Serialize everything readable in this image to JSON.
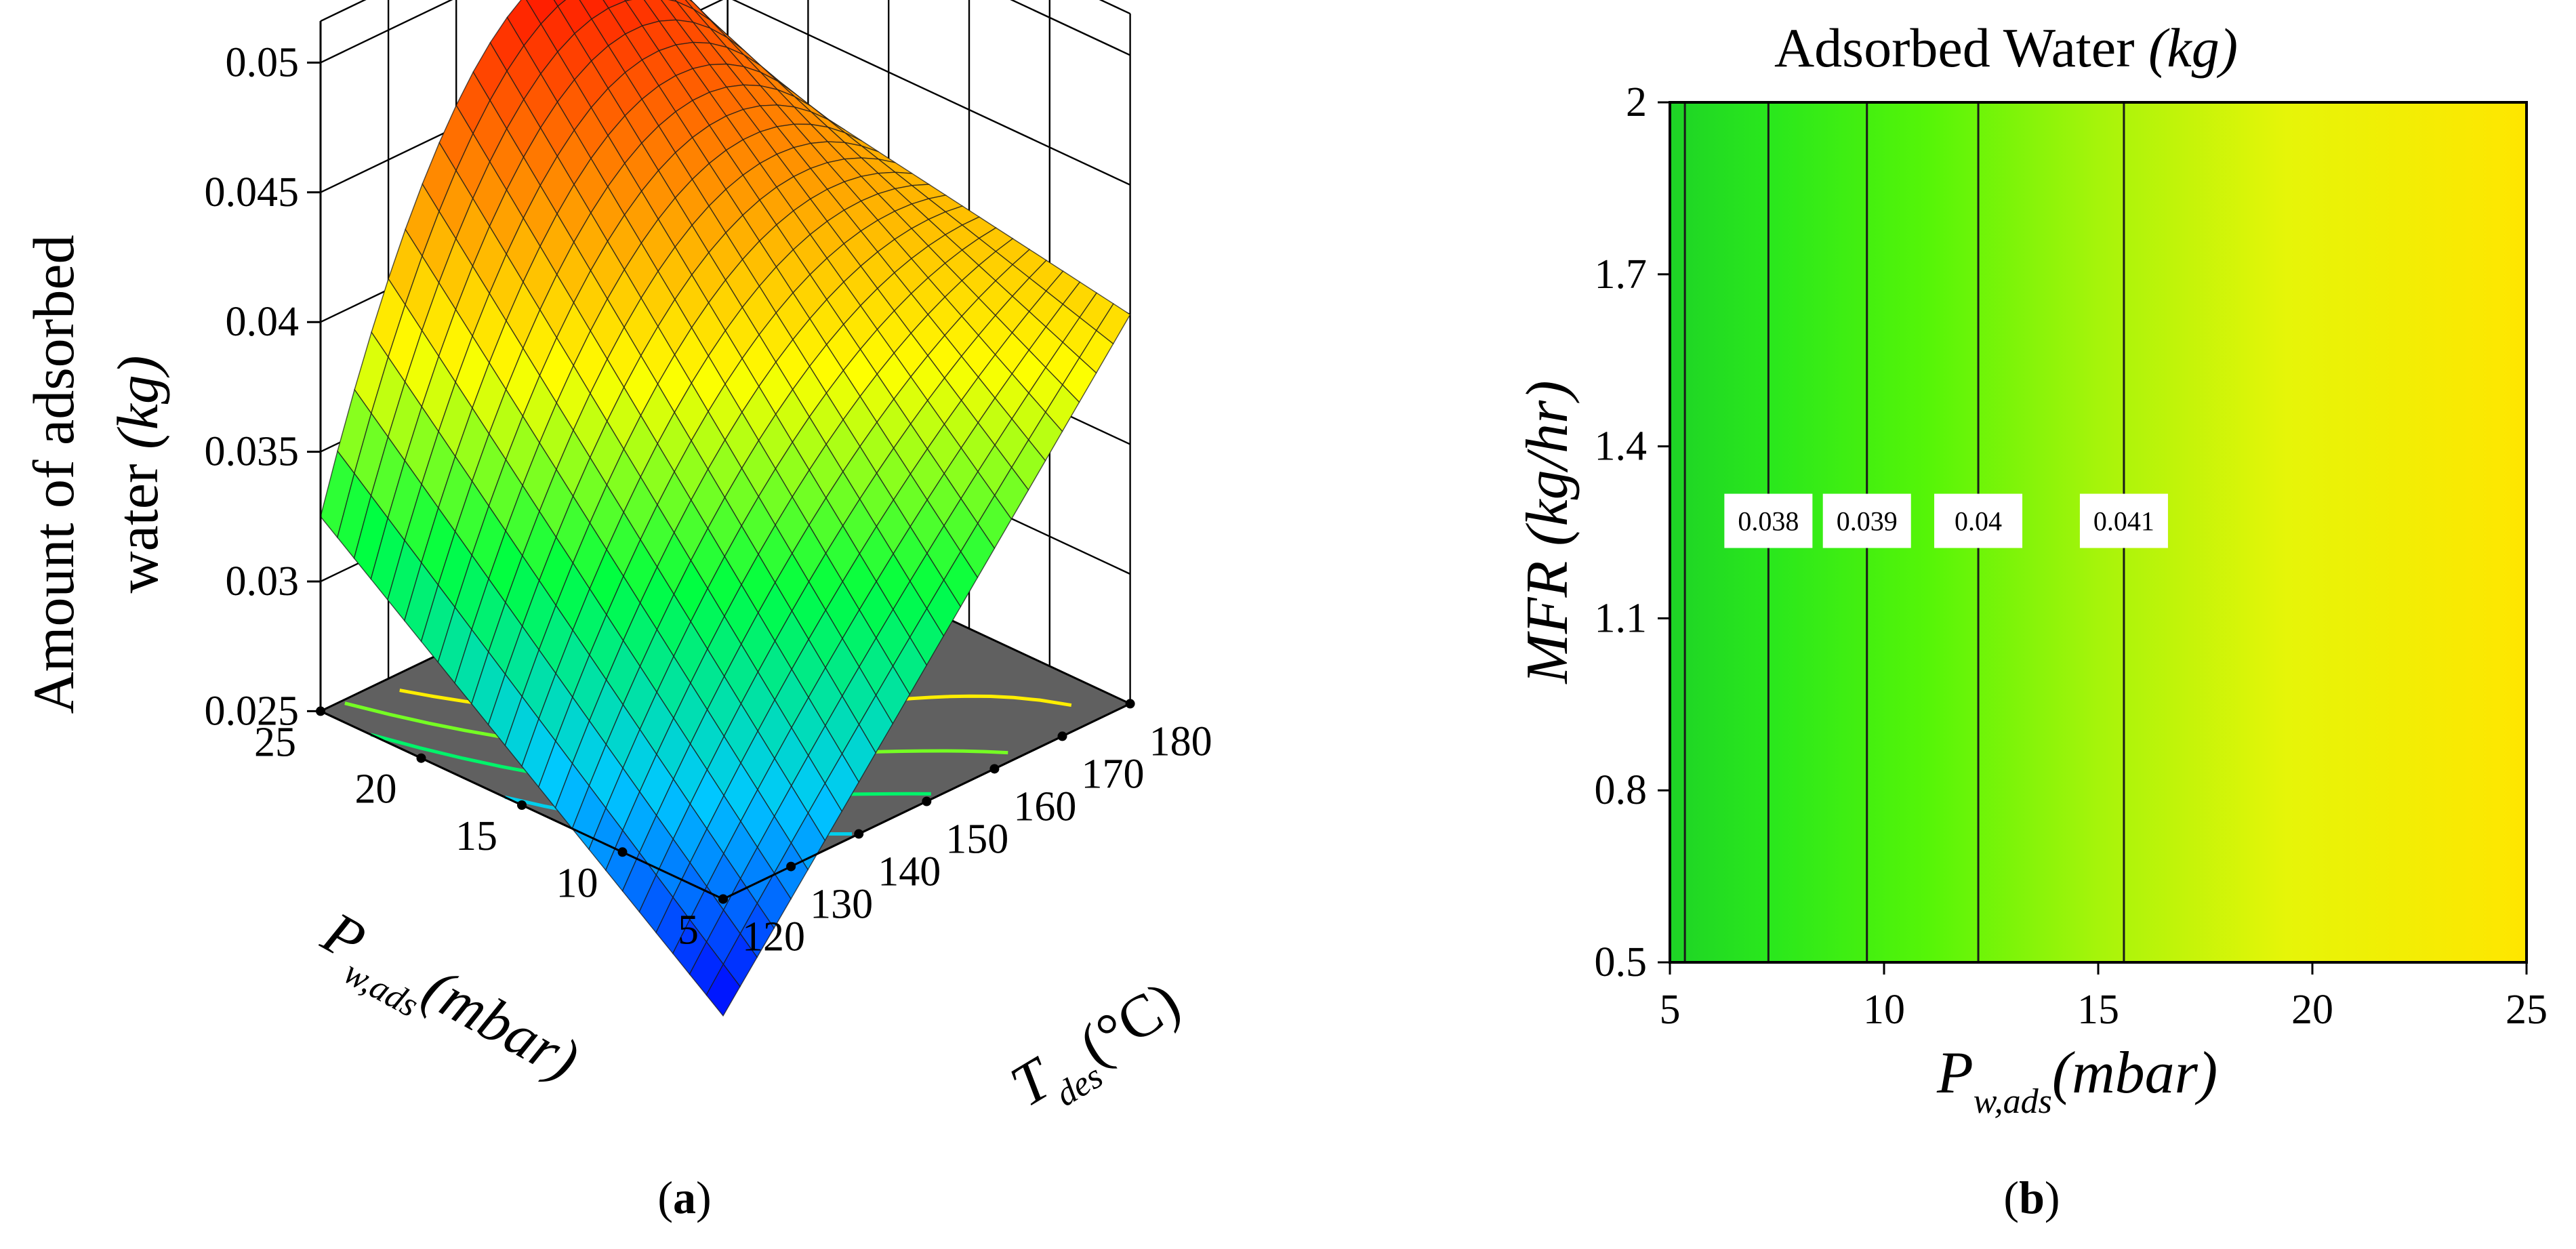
{
  "colors": {
    "background": "#ffffff",
    "axis": "#000000",
    "grid": "#000000",
    "floor": "#606060",
    "colormap": [
      "#0000ff",
      "#00c8ff",
      "#00ff40",
      "#ffff00",
      "#ff8000",
      "#ff0000"
    ]
  },
  "panel_a": {
    "caption_open": "(",
    "caption_letter": "a",
    "caption_close": ")",
    "zlabel_line1": "Amount of adsorbed",
    "zlabel_line2_plain": "water ",
    "zlabel_line2_italic": "(kg)",
    "xlabel_main": "P",
    "xlabel_sub": "w,ads",
    "xlabel_unit": "(mbar)",
    "ylabel_main": "T",
    "ylabel_sub": "des",
    "ylabel_unit": "(°C)",
    "z_ticks": [
      "0.025",
      "0.03",
      "0.035",
      "0.04",
      "0.045",
      "0.05"
    ],
    "p_ticks": [
      "5",
      "10",
      "15",
      "20",
      "25"
    ],
    "t_ticks": [
      "120",
      "130",
      "140",
      "150",
      "160",
      "170",
      "180"
    ]
  },
  "panel_b": {
    "caption_open": "(",
    "caption_letter": "b",
    "caption_close": ")",
    "title_plain": "Adsorbed Water ",
    "title_italic": "(kg)",
    "xlabel_main": "P",
    "xlabel_sub": "w,ads",
    "xlabel_unit": "(mbar)",
    "ylabel": "MFR (kg/hr)",
    "x_ticks": [
      "5",
      "10",
      "15",
      "20",
      "25"
    ],
    "y_ticks": [
      "0.5",
      "0.8",
      "1.1",
      "1.4",
      "1.7",
      "2"
    ]
  },
  "chart_data": [
    {
      "type": "surface",
      "title": "",
      "xlabel": "P_w,ads (mbar)",
      "ylabel": "T_des (°C)",
      "zlabel": "Amount of adsorbed water (kg)",
      "x_range": [
        5,
        25
      ],
      "y_range": [
        120,
        180
      ],
      "z_range": [
        0.025,
        0.05
      ],
      "corner_values": [
        {
          "p": 5,
          "t": 120,
          "z": 0.0205
        },
        {
          "p": 25,
          "t": 120,
          "z": 0.0325
        },
        {
          "p": 5,
          "t": 180,
          "z": 0.04
        },
        {
          "p": 25,
          "t": 180,
          "z": 0.0428
        }
      ],
      "peak": {
        "p": 25,
        "t": 157,
        "z": 0.05
      },
      "floor_contours": [
        0.023,
        0.027,
        0.031,
        0.035,
        0.039
      ]
    },
    {
      "type": "contour",
      "title": "Adsorbed Water (kg)",
      "xlabel": "P_w,ads (mbar)",
      "ylabel": "MFR (kg/hr)",
      "xlim": [
        5,
        25
      ],
      "ylim": [
        0.5,
        2
      ],
      "fill_range": [
        0.037,
        0.043
      ],
      "contour_lines": [
        {
          "x": 5.35,
          "level": null,
          "label": ""
        },
        {
          "x": 7.3,
          "level": 0.038,
          "label": "0.038"
        },
        {
          "x": 9.6,
          "level": 0.039,
          "label": "0.039"
        },
        {
          "x": 12.2,
          "level": 0.04,
          "label": "0.04"
        },
        {
          "x": 15.6,
          "level": 0.041,
          "label": "0.041"
        }
      ],
      "label_y": 1.27
    }
  ]
}
